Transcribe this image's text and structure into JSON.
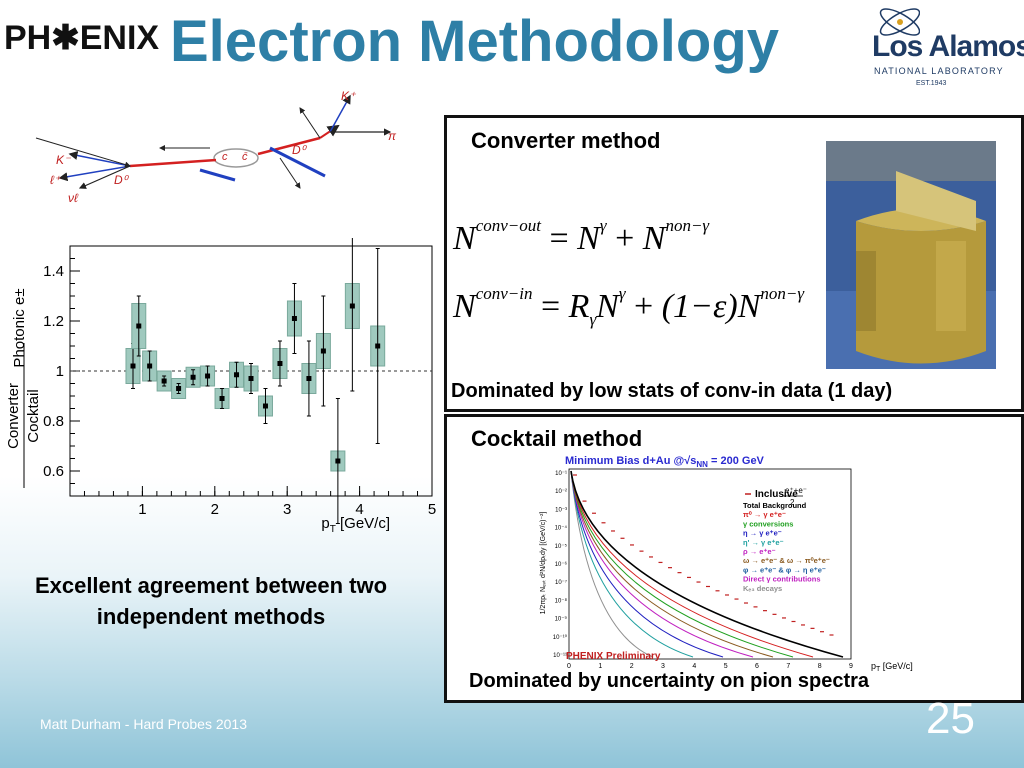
{
  "slide": {
    "title": "Electron Methodology",
    "logo_left": "PH✱ENIX",
    "logo_right": {
      "name": "Los Alamos",
      "sub": "NATIONAL LABORATORY",
      "est": "EST.1943"
    },
    "footer": "Matt Durham - Hard Probes 2013",
    "page_number": "25",
    "caption": "Excellent agreement between two independent methods"
  },
  "decay_diagram": {
    "labels": [
      "K⁺",
      "π",
      "D̄⁰",
      "c",
      "c̄",
      "D⁰",
      "K⁻",
      "ℓ⁺",
      "νℓ"
    ]
  },
  "converter": {
    "label": "Converter method",
    "note": "Dominated by low stats of conv-in data (1 day)",
    "eq1": {
      "lhs": "N",
      "lhs_sup": "conv−out",
      "n1": "N",
      "n1_sup": "γ",
      "n2": "N",
      "n2_sup": "non−γ"
    },
    "eq2": {
      "lhs": "N",
      "lhs_sup": "conv−in",
      "r": "R",
      "r_sub": "γ",
      "n1": "N",
      "n1_sup": "γ",
      "paren": "(1−ε)",
      "n2": "N",
      "n2_sup": "non−γ"
    }
  },
  "cocktail": {
    "label": "Cocktail method",
    "note": "Dominated by uncertainty on pion spectra",
    "plot_title": "Minimum Bias d+Au @√s",
    "plot_title_sub": "NN",
    "plot_title_end": " = 200 GeV",
    "legend": [
      {
        "text": "Inclusive",
        "color": "#000000"
      },
      {
        "text": "Total Background",
        "color": "#000000"
      },
      {
        "text": "π⁰ → γ e⁺e⁻",
        "color": "#d42020"
      },
      {
        "text": "γ conversions",
        "color": "#20a020"
      },
      {
        "text": "η → γ e⁺e⁻",
        "color": "#2020c0"
      },
      {
        "text": "η' → γ e⁺e⁻",
        "color": "#20a0a0"
      },
      {
        "text": "ρ → e⁺e⁻",
        "color": "#c020c0"
      },
      {
        "text": "ω → e⁺e⁻ & ω → π⁰e⁺e⁻",
        "color": "#8a5a20"
      },
      {
        "text": "φ → e⁺e⁻ & φ → η e⁺e⁻",
        "color": "#2060a0"
      },
      {
        "text": "Direct γ contributions",
        "color": "#c020c0"
      },
      {
        "text": "Kₑ₃ decays",
        "color": "#909090"
      }
    ],
    "inclusive_label": "e⁺+e⁻",
    "inclusive_den": "2",
    "preliminary": "PHENIX Preliminary",
    "xlabel": "p",
    "xlabel_sub": "T",
    "xlabel_unit": " [GeV/c]",
    "ylabel": "1/2πpₜ Nₑᵥₜ d²N/dpₜdy [(GeV/c)⁻²]",
    "x_ticks": [
      "0",
      "1",
      "2",
      "3",
      "4",
      "5",
      "6",
      "7",
      "8",
      "9"
    ],
    "y_ticks": [
      "10⁻¹",
      "10⁻²",
      "10⁻³",
      "10⁻⁴",
      "10⁻⁵",
      "10⁻⁶",
      "10⁻⁷",
      "10⁻⁸",
      "10⁻⁹",
      "10⁻¹⁰",
      "10⁻¹¹"
    ]
  },
  "chart_data": {
    "type": "scatter",
    "title": "",
    "xlabel": "pT [GeV/c]",
    "ylabel": "Converter / Cocktail  Photonic e±",
    "xlim": [
      0,
      5
    ],
    "ylim": [
      0.5,
      1.5
    ],
    "x_ticks": [
      1,
      2,
      3,
      4,
      5
    ],
    "y_ticks": [
      0.6,
      0.8,
      1,
      1.2,
      1.4
    ],
    "reference_line": 1,
    "points": [
      {
        "x": 0.87,
        "y": 1.02,
        "err": 0.09,
        "sys": 0.07
      },
      {
        "x": 0.95,
        "y": 1.18,
        "err": 0.12,
        "sys": 0.09
      },
      {
        "x": 1.1,
        "y": 1.02,
        "err": 0.06,
        "sys": 0.06
      },
      {
        "x": 1.3,
        "y": 0.96,
        "err": 0.02,
        "sys": 0.04
      },
      {
        "x": 1.5,
        "y": 0.93,
        "err": 0.02,
        "sys": 0.04
      },
      {
        "x": 1.7,
        "y": 0.975,
        "err": 0.03,
        "sys": 0.04
      },
      {
        "x": 1.9,
        "y": 0.98,
        "err": 0.04,
        "sys": 0.04
      },
      {
        "x": 2.1,
        "y": 0.89,
        "err": 0.04,
        "sys": 0.04
      },
      {
        "x": 2.3,
        "y": 0.985,
        "err": 0.05,
        "sys": 0.05
      },
      {
        "x": 2.5,
        "y": 0.97,
        "err": 0.06,
        "sys": 0.05
      },
      {
        "x": 2.7,
        "y": 0.86,
        "err": 0.07,
        "sys": 0.04
      },
      {
        "x": 2.9,
        "y": 1.03,
        "err": 0.09,
        "sys": 0.06
      },
      {
        "x": 3.1,
        "y": 1.21,
        "err": 0.14,
        "sys": 0.07
      },
      {
        "x": 3.3,
        "y": 0.97,
        "err": 0.15,
        "sys": 0.06
      },
      {
        "x": 3.5,
        "y": 1.08,
        "err": 0.22,
        "sys": 0.07
      },
      {
        "x": 3.7,
        "y": 0.64,
        "err": 0.25,
        "sys": 0.04
      },
      {
        "x": 3.9,
        "y": 1.26,
        "err": 0.34,
        "sys": 0.09
      },
      {
        "x": 4.25,
        "y": 1.1,
        "err": 0.39,
        "sys": 0.08
      }
    ]
  }
}
